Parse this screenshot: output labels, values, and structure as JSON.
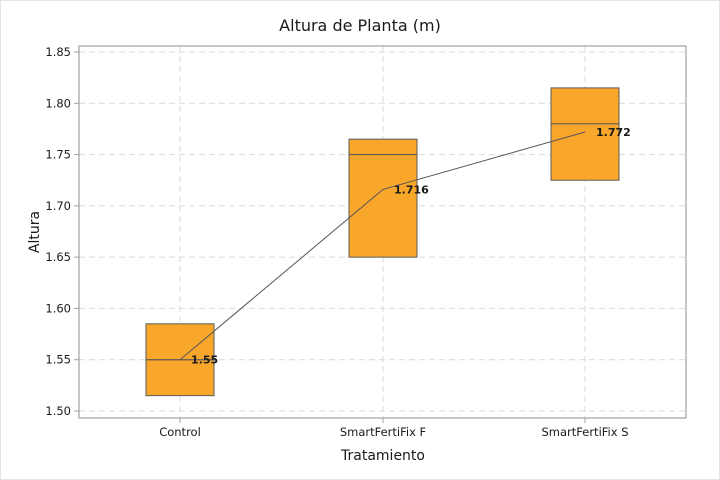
{
  "chart_data": {
    "type": "boxplot",
    "title": "Altura de Planta (m)",
    "xlabel": "Tratamiento",
    "ylabel": "Altura",
    "categories": [
      "Control",
      "SmartFertiFix F",
      "SmartFertiFix S"
    ],
    "ylim": [
      1.5,
      1.85
    ],
    "yticks": [
      "1.50",
      "1.55",
      "1.60",
      "1.65",
      "1.70",
      "1.75",
      "1.80",
      "1.85"
    ],
    "grid": true,
    "boxes": [
      {
        "category": "Control",
        "q1": 1.515,
        "median": 1.55,
        "q3": 1.585,
        "mean": 1.55,
        "mean_label": "1.55"
      },
      {
        "category": "SmartFertiFix F",
        "q1": 1.65,
        "median": 1.75,
        "q3": 1.765,
        "mean": 1.716,
        "mean_label": "1.716"
      },
      {
        "category": "SmartFertiFix S",
        "q1": 1.725,
        "median": 1.78,
        "q3": 1.815,
        "mean": 1.772,
        "mean_label": "1.772"
      }
    ],
    "mean_line": true,
    "colors": {
      "box_fill": "#F9A72B",
      "box_edge": "#5a5a5a",
      "mean_line": "#555555",
      "grid": "#d9d9d9",
      "axis": "#a0a0a0"
    }
  }
}
